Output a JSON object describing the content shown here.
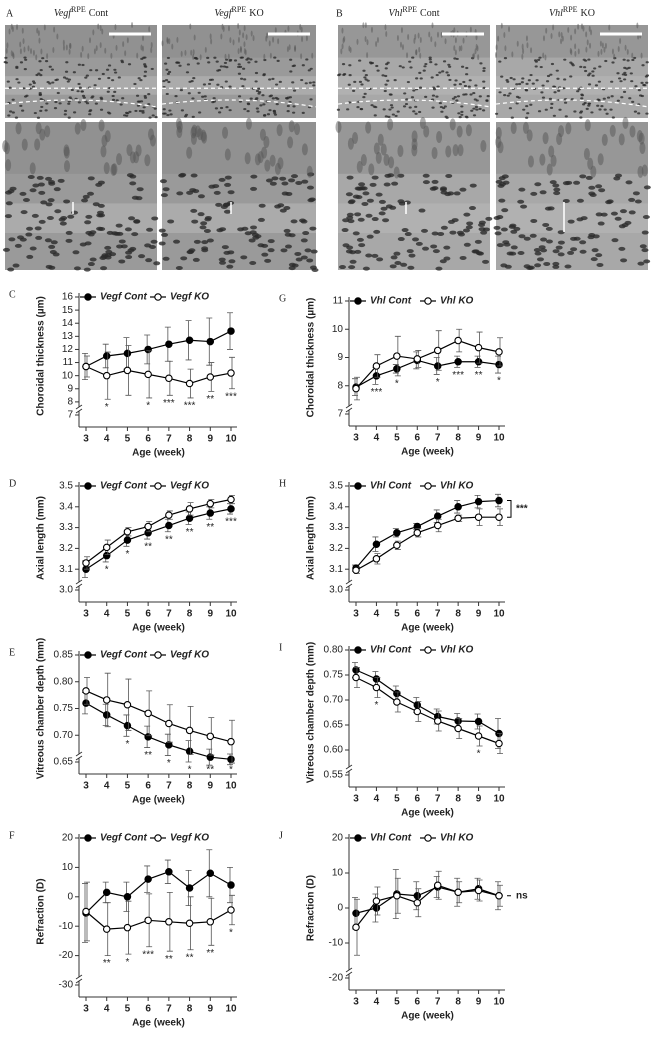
{
  "figure_panels": [
    {
      "panel": "A",
      "images": [
        {
          "gene": "Vegf",
          "sup": "RPE",
          "group": "Cont"
        },
        {
          "gene": "Vegf",
          "sup": "RPE",
          "group": "KO"
        }
      ]
    },
    {
      "panel": "B",
      "images": [
        {
          "gene": "Vhl",
          "sup": "RPE",
          "group": "Cont"
        },
        {
          "gene": "Vhl",
          "sup": "RPE",
          "group": "KO"
        }
      ]
    }
  ],
  "chart_data": [
    {
      "type": "line",
      "panel": "C",
      "ylabel": "Choroidal thickness (µm)",
      "xlabel": "Age (week)",
      "x": [
        3,
        4,
        5,
        6,
        7,
        8,
        9,
        10
      ],
      "xlim": [
        3,
        10
      ],
      "xticks": [
        3,
        4,
        5,
        6,
        7,
        8,
        9,
        10
      ],
      "ylim": [
        7,
        16
      ],
      "yticks": [
        7,
        8,
        9,
        10,
        11,
        12,
        13,
        14,
        15,
        16
      ],
      "series": [
        {
          "name": "Vegf Cont",
          "color": "#000000",
          "marker": "filled",
          "values": [
            10.7,
            11.5,
            11.7,
            12.0,
            12.4,
            12.7,
            12.6,
            13.4
          ],
          "errors": [
            1.0,
            0.9,
            1.2,
            1.1,
            1.3,
            1.5,
            1.8,
            1.4
          ]
        },
        {
          "name": "Vegf KO",
          "color": "#000000",
          "marker": "open",
          "values": [
            10.7,
            10.0,
            10.4,
            10.1,
            9.8,
            9.4,
            9.9,
            10.2
          ],
          "errors": [
            0.8,
            1.8,
            1.9,
            1.8,
            1.3,
            1.1,
            1.1,
            1.2
          ]
        }
      ],
      "annotations": [
        {
          "x": 4,
          "text": "*"
        },
        {
          "x": 6,
          "text": "*"
        },
        {
          "x": 7,
          "text": "***"
        },
        {
          "x": 8,
          "text": "***"
        },
        {
          "x": 9,
          "text": "**"
        },
        {
          "x": 10,
          "text": "***"
        }
      ]
    },
    {
      "type": "line",
      "panel": "D",
      "ylabel": "Axial length (mm)",
      "xlabel": "Age (week)",
      "x": [
        3,
        4,
        5,
        6,
        7,
        8,
        9,
        10
      ],
      "xlim": [
        3,
        10
      ],
      "xticks": [
        3,
        4,
        5,
        6,
        7,
        8,
        9,
        10
      ],
      "ylim": [
        3.0,
        3.5
      ],
      "yticks": [
        {
          "value": 3.0,
          "label": "3.0"
        },
        3.1,
        3.2,
        3.3,
        3.4,
        {
          "value": 3.5,
          "label": "3.5"
        }
      ],
      "series": [
        {
          "name": "Vegf Cont",
          "color": "#000000",
          "marker": "filled",
          "values": [
            3.1,
            3.165,
            3.24,
            3.275,
            3.31,
            3.345,
            3.37,
            3.39
          ],
          "errors": [
            0.04,
            0.03,
            0.03,
            0.03,
            0.03,
            0.03,
            0.03,
            0.025
          ]
        },
        {
          "name": "Vegf KO",
          "color": "#000000",
          "marker": "open",
          "values": [
            3.13,
            3.205,
            3.28,
            3.305,
            3.36,
            3.39,
            3.415,
            3.435
          ],
          "errors": [
            0.03,
            0.035,
            0.02,
            0.025,
            0.02,
            0.03,
            0.02,
            0.02
          ]
        }
      ],
      "annotations": [
        {
          "x": 4,
          "text": "*"
        },
        {
          "x": 5,
          "text": "*"
        },
        {
          "x": 6,
          "text": "**"
        },
        {
          "x": 7,
          "text": "**"
        },
        {
          "x": 8,
          "text": "**"
        },
        {
          "x": 9,
          "text": "**"
        },
        {
          "x": 10,
          "text": "***"
        }
      ]
    },
    {
      "type": "line",
      "panel": "E",
      "ylabel": "Vitreous chamber depth (mm)",
      "xlabel": "Age (week)",
      "x": [
        3,
        4,
        5,
        6,
        7,
        8,
        9,
        10
      ],
      "xlim": [
        3,
        10
      ],
      "xticks": [
        3,
        4,
        5,
        6,
        7,
        8,
        9,
        10
      ],
      "ylim": [
        0.65,
        0.85
      ],
      "yticks": [
        0.65,
        {
          "value": 0.7,
          "label": "0.70"
        },
        0.75,
        {
          "value": 0.8,
          "label": "0.80"
        },
        0.85
      ],
      "series": [
        {
          "name": "Vegf Cont",
          "color": "#000000",
          "marker": "filled",
          "values": [
            0.76,
            0.738,
            0.718,
            0.697,
            0.682,
            0.67,
            0.659,
            0.655
          ],
          "errors": [
            0.02,
            0.02,
            0.02,
            0.02,
            0.02,
            0.02,
            0.015,
            0.01
          ]
        },
        {
          "name": "Vegf KO",
          "color": "#000000",
          "marker": "open",
          "values": [
            0.783,
            0.766,
            0.757,
            0.741,
            0.722,
            0.709,
            0.698,
            0.688
          ],
          "errors": [
            0.025,
            0.05,
            0.048,
            0.042,
            0.035,
            0.045,
            0.035,
            0.04
          ]
        }
      ],
      "annotations": [
        {
          "x": 5,
          "text": "*"
        },
        {
          "x": 6,
          "text": "**"
        },
        {
          "x": 7,
          "text": "*"
        },
        {
          "x": 8,
          "text": "*"
        },
        {
          "x": 9,
          "text": "**"
        },
        {
          "x": 10,
          "text": "*"
        }
      ]
    },
    {
      "type": "line",
      "panel": "F",
      "ylabel": "Refraction (D)",
      "xlabel": "Age (week)",
      "x": [
        3,
        4,
        5,
        6,
        7,
        8,
        9,
        10
      ],
      "xlim": [
        3,
        10
      ],
      "xticks": [
        3,
        4,
        5,
        6,
        7,
        8,
        9,
        10
      ],
      "ylim": [
        -30,
        20
      ],
      "yticks": [
        -30,
        -20,
        -10,
        0,
        10,
        20
      ],
      "series": [
        {
          "name": "Vegf Cont",
          "color": "#000000",
          "marker": "filled",
          "values": [
            -5.5,
            1.5,
            0,
            6,
            8.5,
            3,
            8,
            4
          ],
          "errors": [
            10,
            3.5,
            5,
            4.5,
            4,
            6,
            8,
            6
          ]
        },
        {
          "name": "Vegf KO",
          "color": "#000000",
          "marker": "open",
          "values": [
            -5,
            -11,
            -10.5,
            -8,
            -8.5,
            -9,
            -8.5,
            -4.5
          ],
          "errors": [
            10,
            9,
            9,
            9,
            10,
            9,
            8,
            5
          ]
        }
      ],
      "annotations": [
        {
          "x": 4,
          "text": "**"
        },
        {
          "x": 5,
          "text": "*"
        },
        {
          "x": 6,
          "text": "***"
        },
        {
          "x": 7,
          "text": "**"
        },
        {
          "x": 8,
          "text": "**"
        },
        {
          "x": 9,
          "text": "**"
        },
        {
          "x": 10,
          "text": "*"
        }
      ]
    },
    {
      "type": "line",
      "panel": "G",
      "ylabel": "Choroidal thickness (µm)",
      "xlabel": "Age (week)",
      "x": [
        3,
        4,
        5,
        6,
        7,
        8,
        9,
        10
      ],
      "xlim": [
        3,
        10
      ],
      "xticks": [
        3,
        4,
        5,
        6,
        7,
        8,
        9,
        10
      ],
      "ylim": [
        7,
        11
      ],
      "yticks": [
        7,
        8,
        9,
        10,
        11
      ],
      "series": [
        {
          "name": "Vhl Cont",
          "color": "#000000",
          "marker": "filled",
          "values": [
            7.95,
            8.35,
            8.6,
            8.9,
            8.7,
            8.85,
            8.85,
            8.75
          ],
          "errors": [
            0.3,
            0.3,
            0.15,
            0.3,
            0.3,
            0.2,
            0.2,
            0.3
          ]
        },
        {
          "name": "Vhl KO",
          "color": "#000000",
          "marker": "open",
          "values": [
            7.9,
            8.7,
            9.05,
            8.95,
            9.25,
            9.6,
            9.35,
            9.2
          ],
          "errors": [
            0.4,
            0.4,
            0.7,
            0.3,
            0.7,
            0.4,
            0.55,
            0.5
          ]
        }
      ],
      "annotations": [
        {
          "x": 4,
          "text": "***"
        },
        {
          "x": 5,
          "text": "*"
        },
        {
          "x": 7,
          "text": "*"
        },
        {
          "x": 8,
          "text": "***"
        },
        {
          "x": 9,
          "text": "**"
        },
        {
          "x": 10,
          "text": "*"
        }
      ]
    },
    {
      "type": "line",
      "panel": "H",
      "ylabel": "Axial length (mm)",
      "xlabel": "Age (week)",
      "x": [
        3,
        4,
        5,
        6,
        7,
        8,
        9,
        10
      ],
      "xlim": [
        3,
        10
      ],
      "xticks": [
        3,
        4,
        5,
        6,
        7,
        8,
        9,
        10
      ],
      "ylim": [
        3.0,
        3.5
      ],
      "yticks": [
        {
          "value": 3.0,
          "label": "3.0"
        },
        3.1,
        3.2,
        3.3,
        3.4,
        {
          "value": 3.5,
          "label": "3.5"
        }
      ],
      "series": [
        {
          "name": "Vhl Cont",
          "color": "#000000",
          "marker": "filled",
          "values": [
            3.105,
            3.22,
            3.275,
            3.305,
            3.355,
            3.4,
            3.425,
            3.43
          ],
          "errors": [
            0.015,
            0.035,
            0.02,
            0.015,
            0.03,
            0.03,
            0.03,
            0.03
          ]
        },
        {
          "name": "Vhl KO",
          "color": "#000000",
          "marker": "open",
          "values": [
            3.095,
            3.15,
            3.215,
            3.275,
            3.31,
            3.345,
            3.35,
            3.35
          ],
          "errors": [
            0.015,
            0.025,
            0.02,
            0.02,
            0.03,
            0.015,
            0.04,
            0.04
          ]
        }
      ],
      "bracket": "***"
    },
    {
      "type": "line",
      "panel": "I",
      "ylabel": "Vitreous chamber depth (mm)",
      "xlabel": "Age (week)",
      "x": [
        3,
        4,
        5,
        6,
        7,
        8,
        9,
        10
      ],
      "xlim": [
        3,
        10
      ],
      "xticks": [
        3,
        4,
        5,
        6,
        7,
        8,
        9,
        10
      ],
      "ylim": [
        0.55,
        0.8
      ],
      "yticks": [
        0.55,
        {
          "value": 0.6,
          "label": "0.60"
        },
        0.65,
        {
          "value": 0.7,
          "label": "0.70"
        },
        0.75,
        {
          "value": 0.8,
          "label": "0.80"
        }
      ],
      "series": [
        {
          "name": "Vhl Cont",
          "color": "#000000",
          "marker": "filled",
          "values": [
            0.76,
            0.742,
            0.713,
            0.69,
            0.667,
            0.658,
            0.657,
            0.633
          ],
          "errors": [
            0.015,
            0.015,
            0.015,
            0.015,
            0.015,
            0.015,
            0.015,
            0.03
          ]
        },
        {
          "name": "Vhl KO",
          "color": "#000000",
          "marker": "open",
          "values": [
            0.745,
            0.725,
            0.696,
            0.677,
            0.658,
            0.643,
            0.628,
            0.613
          ],
          "errors": [
            0.02,
            0.02,
            0.02,
            0.02,
            0.02,
            0.02,
            0.02,
            0.02
          ]
        }
      ],
      "annotations": [
        {
          "x": 4,
          "text": "*"
        },
        {
          "x": 9,
          "text": "*"
        }
      ]
    },
    {
      "type": "line",
      "panel": "J",
      "ylabel": "Refraction (D)",
      "xlabel": "Age (week)",
      "x": [
        3,
        4,
        5,
        6,
        7,
        8,
        9,
        10
      ],
      "xlim": [
        3,
        10
      ],
      "xticks": [
        3,
        4,
        5,
        6,
        7,
        8,
        9,
        10
      ],
      "ylim": [
        -20,
        20
      ],
      "yticks": [
        -20,
        -10,
        0,
        10,
        20
      ],
      "series": [
        {
          "name": "Vhl Cont",
          "color": "#000000",
          "marker": "filled",
          "values": [
            -1.5,
            0,
            4,
            3.5,
            6,
            4.5,
            5.5,
            3.5
          ],
          "errors": [
            4.5,
            4,
            7,
            4,
            3,
            4,
            3,
            4
          ]
        },
        {
          "name": "Vhl KO",
          "color": "#000000",
          "marker": "open",
          "values": [
            -5.5,
            2,
            3.5,
            1.5,
            6.5,
            4.5,
            5,
            3.5
          ],
          "errors": [
            8,
            4,
            5,
            4,
            4,
            3,
            3,
            3
          ]
        }
      ],
      "bracket": "ns"
    }
  ]
}
